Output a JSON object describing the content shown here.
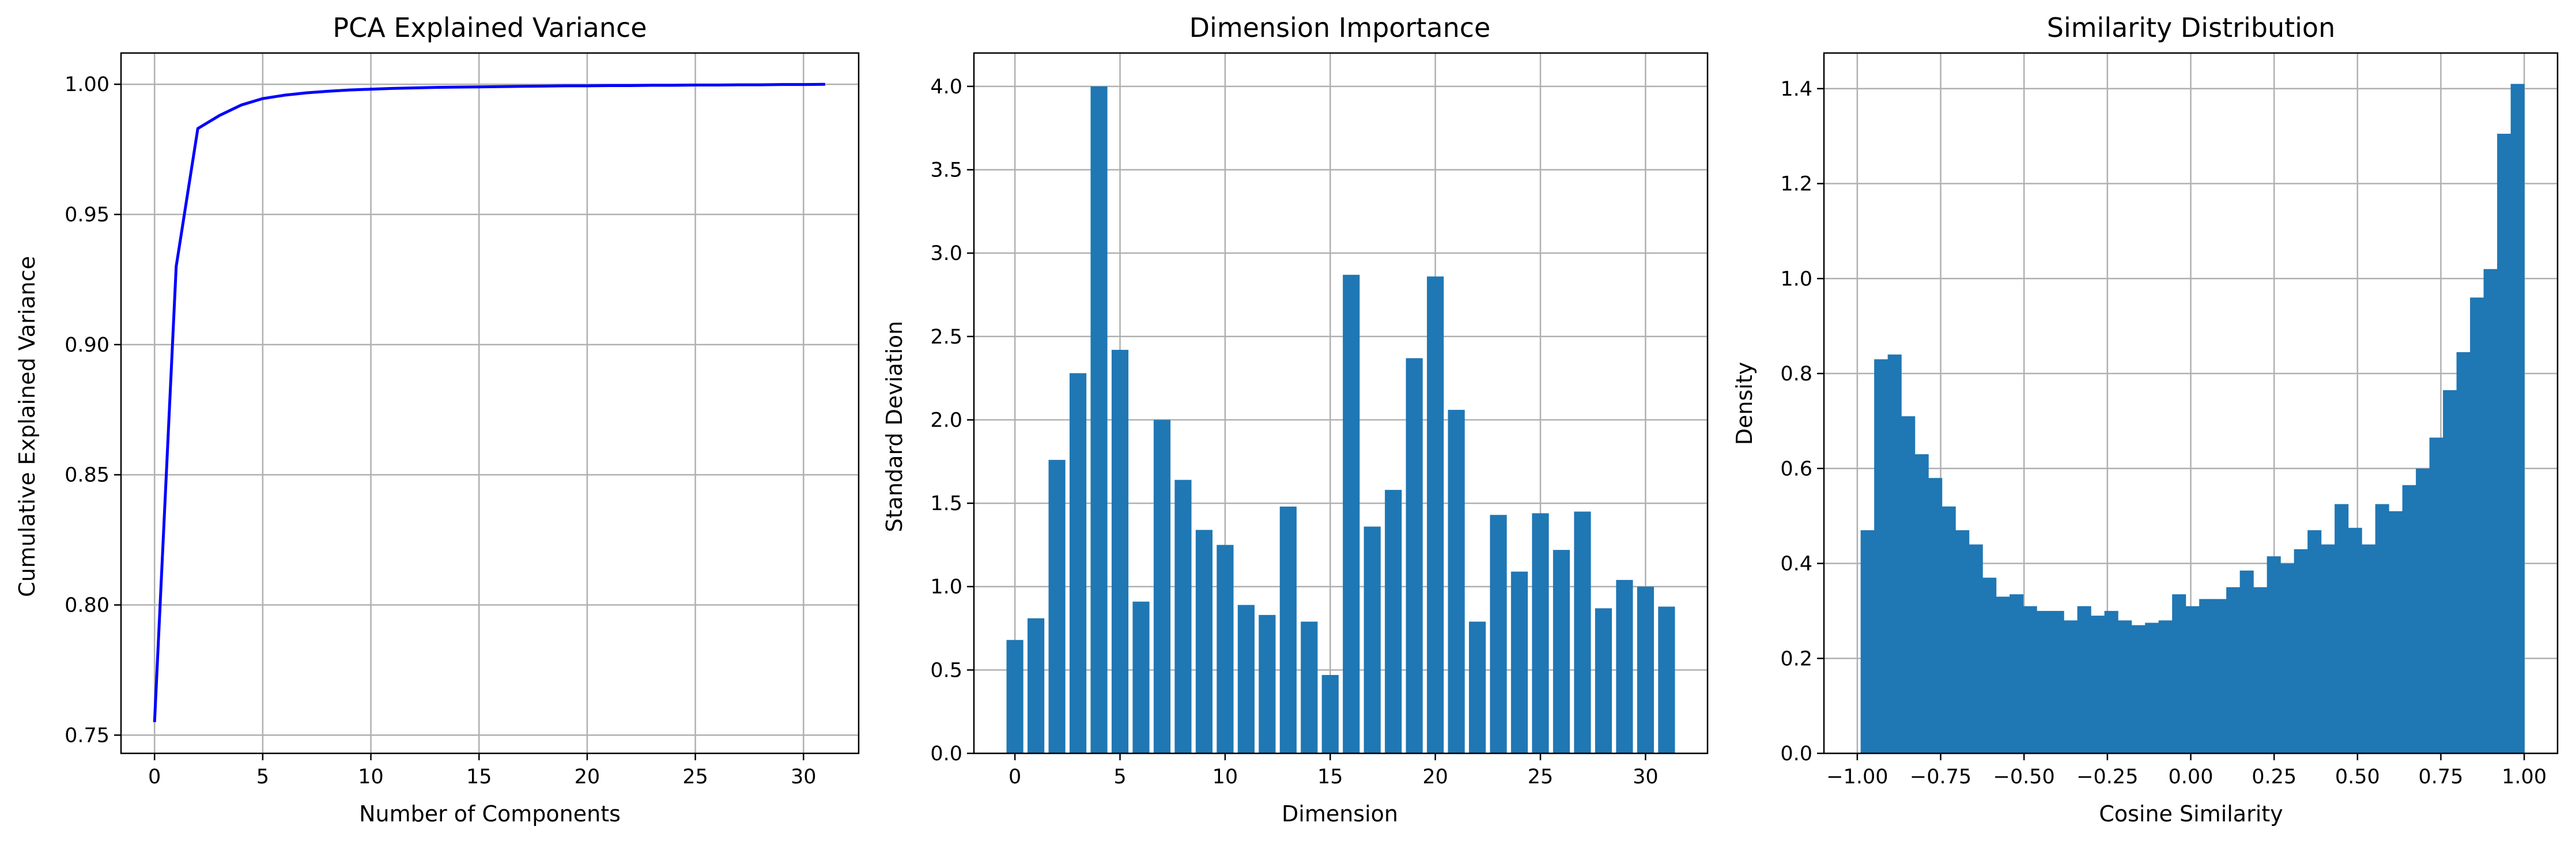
{
  "chart_data": [
    {
      "type": "line",
      "title": "PCA Explained Variance",
      "xlabel": "Number of Components",
      "ylabel": "Cumulative Explained Variance",
      "xlim": [
        -1.55,
        32.55
      ],
      "ylim": [
        0.743,
        1.012
      ],
      "xticks": [
        0,
        5,
        10,
        15,
        20,
        25,
        30
      ],
      "yticks": [
        0.75,
        0.8,
        0.85,
        0.9,
        0.95,
        1.0
      ],
      "ytick_labels": [
        "0.75",
        "0.80",
        "0.85",
        "0.90",
        "0.95",
        "1.00"
      ],
      "grid": true,
      "line_color": "#0000ff",
      "x": [
        0,
        1,
        2,
        3,
        4,
        5,
        6,
        7,
        8,
        9,
        10,
        11,
        12,
        13,
        14,
        15,
        16,
        17,
        18,
        19,
        20,
        21,
        22,
        23,
        24,
        25,
        26,
        27,
        28,
        29,
        30,
        31
      ],
      "y": [
        0.755,
        0.93,
        0.983,
        0.988,
        0.992,
        0.9945,
        0.9958,
        0.9967,
        0.9973,
        0.9978,
        0.9981,
        0.9984,
        0.9986,
        0.9988,
        0.9989,
        0.999,
        0.9991,
        0.9992,
        0.9993,
        0.9994,
        0.9994,
        0.9995,
        0.9995,
        0.9996,
        0.9996,
        0.9997,
        0.9997,
        0.9998,
        0.9998,
        0.9999,
        0.9999,
        1.0
      ]
    },
    {
      "type": "bar",
      "title": "Dimension Importance",
      "xlabel": "Dimension",
      "ylabel": "Standard Deviation",
      "xlim": [
        -1.95,
        32.95
      ],
      "ylim": [
        0,
        4.2
      ],
      "xticks": [
        0,
        5,
        10,
        15,
        20,
        25,
        30
      ],
      "yticks": [
        0,
        0.5,
        1.0,
        1.5,
        2.0,
        2.5,
        3.0,
        3.5,
        4.0
      ],
      "ytick_labels": [
        "0.0",
        "0.5",
        "1.0",
        "1.5",
        "2.0",
        "2.5",
        "3.0",
        "3.5",
        "4.0"
      ],
      "grid": true,
      "bar_color": "#1f77b4",
      "categories": [
        0,
        1,
        2,
        3,
        4,
        5,
        6,
        7,
        8,
        9,
        10,
        11,
        12,
        13,
        14,
        15,
        16,
        17,
        18,
        19,
        20,
        21,
        22,
        23,
        24,
        25,
        26,
        27,
        28,
        29,
        30,
        31
      ],
      "values": [
        0.68,
        0.81,
        1.76,
        2.28,
        4.0,
        2.42,
        0.91,
        2.0,
        1.64,
        1.34,
        1.25,
        0.89,
        0.83,
        1.48,
        0.79,
        0.47,
        2.87,
        1.36,
        1.58,
        2.37,
        2.86,
        2.06,
        0.79,
        1.43,
        1.09,
        1.44,
        1.22,
        1.45,
        0.87,
        1.04,
        1.0,
        0.88
      ]
    },
    {
      "type": "histogram",
      "title": "Similarity Distribution",
      "xlabel": "Cosine Similarity",
      "ylabel": "Density",
      "xlim": [
        -1.1,
        1.1
      ],
      "ylim": [
        0,
        1.475
      ],
      "xticks": [
        -1.0,
        -0.75,
        -0.5,
        -0.25,
        0.0,
        0.25,
        0.5,
        0.75,
        1.0
      ],
      "xtick_labels": [
        "−1.00",
        "−0.75",
        "−0.50",
        "−0.25",
        "0.00",
        "0.25",
        "0.50",
        "0.75",
        "1.00"
      ],
      "yticks": [
        0,
        0.2,
        0.4,
        0.6,
        0.8,
        1.0,
        1.2,
        1.4
      ],
      "ytick_labels": [
        "0.0",
        "0.2",
        "0.4",
        "0.6",
        "0.8",
        "1.0",
        "1.2",
        "1.4"
      ],
      "grid": true,
      "bar_color": "#1f77b4",
      "bin_range": [
        -0.99,
        1.0
      ],
      "values": [
        0.47,
        0.83,
        0.84,
        0.71,
        0.63,
        0.58,
        0.52,
        0.47,
        0.44,
        0.37,
        0.33,
        0.335,
        0.31,
        0.3,
        0.3,
        0.28,
        0.31,
        0.29,
        0.3,
        0.28,
        0.27,
        0.275,
        0.28,
        0.335,
        0.31,
        0.325,
        0.325,
        0.35,
        0.385,
        0.35,
        0.415,
        0.4,
        0.43,
        0.47,
        0.44,
        0.525,
        0.475,
        0.44,
        0.525,
        0.51,
        0.565,
        0.6,
        0.665,
        0.765,
        0.845,
        0.96,
        1.02,
        1.305,
        1.41
      ]
    }
  ]
}
